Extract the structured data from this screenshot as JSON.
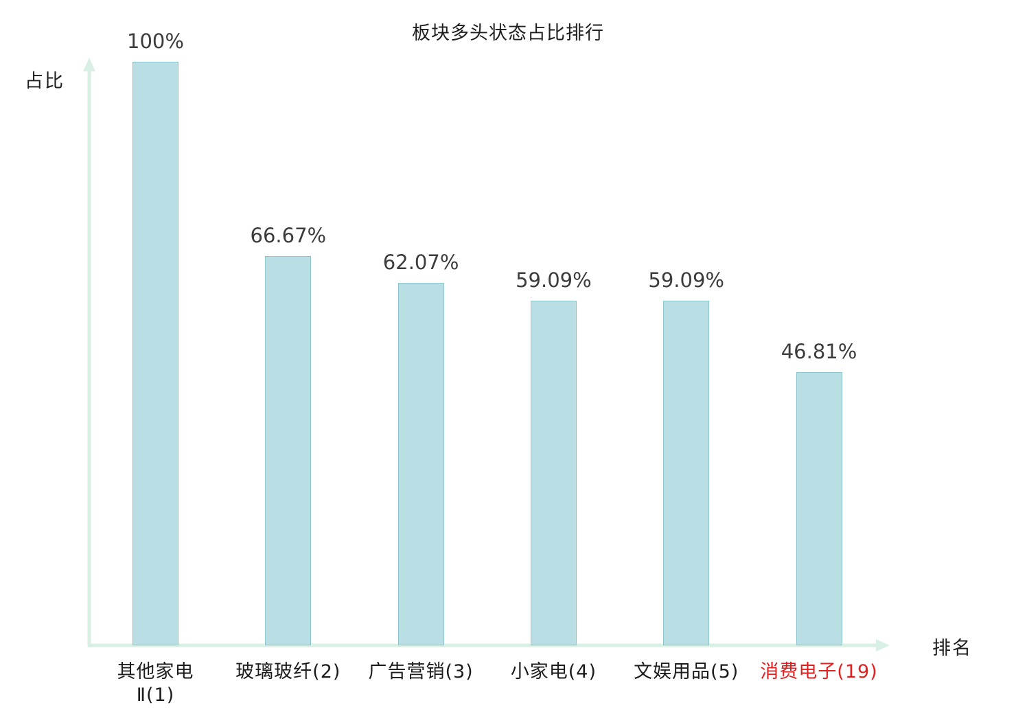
{
  "chart_data": {
    "type": "bar",
    "title": "板块多头状态占比排行",
    "xlabel": "排名",
    "ylabel": "占比",
    "ylim": [
      0,
      100
    ],
    "grid": false,
    "legend": false,
    "bar_color": "#b9dee3",
    "bar_border_color": "#8fc6ce",
    "axis_color": "#d8efe4",
    "value_label_color": "#3c3c3c",
    "category_label_color": "#1c1c1c",
    "label_highlight_color": "#e02020",
    "highlighted_category_index": 5,
    "categories": [
      "其他家电\nⅡ(1)",
      "玻璃玻纤(2)",
      "广告营销(3)",
      "小家电(4)",
      "文娱用品(5)",
      "消费电子(19)"
    ],
    "values": [
      100,
      66.67,
      62.07,
      59.09,
      59.09,
      46.81
    ],
    "value_labels": [
      "100%",
      "66.67%",
      "62.07%",
      "59.09%",
      "59.09%",
      "46.81%"
    ]
  }
}
